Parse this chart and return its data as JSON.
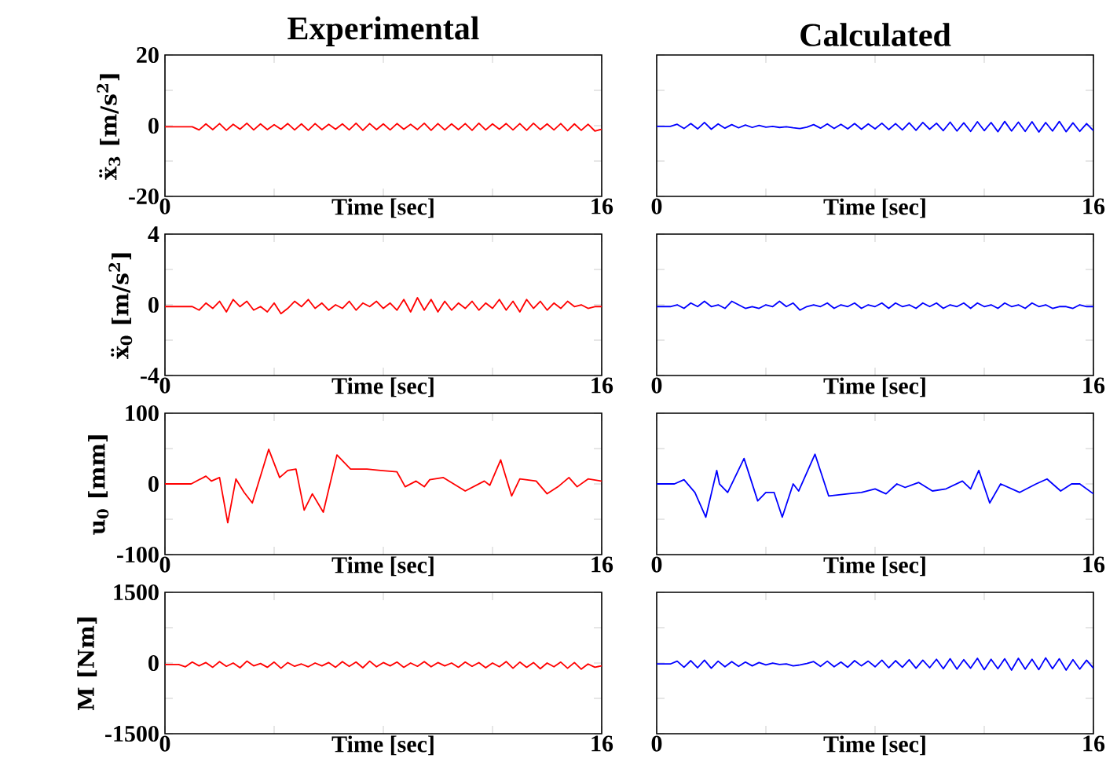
{
  "chart_data": [
    {
      "type": "line",
      "title": "Experimental",
      "xlabel": "Time [sec]",
      "ylabel": "ẍ$_{3}$ [m/s$^{2}$]",
      "xlim": [
        0,
        16
      ],
      "xticks": [
        0,
        {
          "value": 4,
          "label": null
        },
        {
          "value": 8,
          "label": null
        },
        {
          "value": 12,
          "label": null
        },
        16
      ],
      "ylim": [
        -20,
        20
      ],
      "yticks": [
        -20,
        {
          "value": -10,
          "label": null
        },
        0,
        {
          "value": 10,
          "label": null
        },
        20
      ],
      "x": [
        0,
        0.25,
        0.5,
        0.75,
        1,
        1.25,
        1.5,
        1.75,
        2,
        2.25,
        2.5,
        2.75,
        3,
        3.25,
        3.5,
        3.75,
        4,
        4.25,
        4.5,
        4.75,
        5,
        5.25,
        5.5,
        5.75,
        6,
        6.25,
        6.5,
        6.75,
        7,
        7.25,
        7.5,
        7.75,
        8,
        8.25,
        8.5,
        8.75,
        9,
        9.25,
        9.5,
        9.75,
        10,
        10.25,
        10.5,
        10.75,
        11,
        11.25,
        11.5,
        11.75,
        12,
        12.25,
        12.5,
        12.75,
        13,
        13.25,
        13.5,
        13.75,
        14,
        14.25,
        14.5,
        14.75,
        15,
        15.25,
        15.5,
        15.75,
        16
      ],
      "series": [
        {
          "color": "#ff0000",
          "values": [
            -0.3,
            -0.3,
            -0.3,
            -0.3,
            -0.3,
            -1.2,
            0.5,
            -1.1,
            0.6,
            -1.3,
            0.4,
            -1.0,
            0.7,
            -1.2,
            0.5,
            -1.1,
            0.3,
            -1.0,
            0.6,
            -1.2,
            0.5,
            -1.3,
            0.6,
            -1.1,
            0.4,
            -1.0,
            0.5,
            -1.2,
            0.7,
            -1.3,
            0.6,
            -1.1,
            0.5,
            -1.2,
            0.6,
            -1.0,
            0.4,
            -1.1,
            0.7,
            -1.3,
            0.6,
            -1.2,
            0.5,
            -1.1,
            0.6,
            -1.3,
            0.7,
            -1.2,
            0.5,
            -1.0,
            0.6,
            -1.2,
            0.6,
            -1.3,
            0.7,
            -1.1,
            0.5,
            -1.2,
            0.6,
            -1.4,
            0.5,
            -1.3,
            0.4,
            -1.5,
            -1.0
          ]
        }
      ]
    },
    {
      "type": "line",
      "title": "Calculated",
      "xlabel": "Time [sec]",
      "xlim": [
        0,
        16
      ],
      "xticks": [
        0,
        {
          "value": 4,
          "label": null
        },
        {
          "value": 8,
          "label": null
        },
        {
          "value": 12,
          "label": null
        },
        16
      ],
      "ylim": [
        -20,
        20
      ],
      "yticks": [
        -20,
        {
          "value": -10,
          "label": null
        },
        0,
        {
          "value": 10,
          "label": null
        },
        20
      ],
      "tick_labels": "x",
      "x": [
        0,
        0.25,
        0.5,
        0.75,
        1,
        1.25,
        1.5,
        1.75,
        2,
        2.25,
        2.5,
        2.75,
        3,
        3.25,
        3.5,
        3.75,
        4,
        4.25,
        4.5,
        4.75,
        5,
        5.25,
        5.5,
        5.75,
        6,
        6.25,
        6.5,
        6.75,
        7,
        7.25,
        7.5,
        7.75,
        8,
        8.25,
        8.5,
        8.75,
        9,
        9.25,
        9.5,
        9.75,
        10,
        10.25,
        10.5,
        10.75,
        11,
        11.25,
        11.5,
        11.75,
        12,
        12.25,
        12.5,
        12.75,
        13,
        13.25,
        13.5,
        13.75,
        14,
        14.25,
        14.5,
        14.75,
        15,
        15.25,
        15.5,
        15.75,
        16
      ],
      "series": [
        {
          "color": "#0000ff",
          "values": [
            -0.2,
            -0.2,
            -0.2,
            0.4,
            -0.8,
            0.6,
            -0.9,
            0.9,
            -1.0,
            0.5,
            -0.7,
            0.3,
            -0.6,
            0.2,
            -0.5,
            0.1,
            -0.4,
            -0.2,
            -0.5,
            -0.3,
            -0.6,
            -0.8,
            -0.4,
            0.3,
            -0.7,
            0.5,
            -0.8,
            0.4,
            -0.9,
            0.6,
            -1.0,
            0.5,
            -0.9,
            0.7,
            -1.1,
            0.6,
            -1.2,
            0.8,
            -1.3,
            0.9,
            -1.0,
            0.7,
            -1.4,
            1.0,
            -1.5,
            0.8,
            -1.6,
            1.1,
            -1.4,
            0.9,
            -1.7,
            1.2,
            -1.5,
            1.0,
            -1.6,
            1.1,
            -1.8,
            0.9,
            -1.5,
            1.2,
            -1.7,
            0.8,
            -1.6,
            0.6,
            -1.4
          ]
        }
      ]
    },
    {
      "type": "line",
      "xlabel": "Time [sec]",
      "ylabel": "ẍ$_{0}$ [m/s$^{2}$]",
      "xlim": [
        0,
        16
      ],
      "xticks": [
        0,
        {
          "value": 4,
          "label": null
        },
        {
          "value": 8,
          "label": null
        },
        {
          "value": 12,
          "label": null
        },
        16
      ],
      "ylim": [
        -4,
        4
      ],
      "yticks": [
        -4,
        {
          "value": -2,
          "label": null
        },
        0,
        {
          "value": 2,
          "label": null
        },
        4
      ],
      "x": [
        0,
        0.25,
        0.5,
        0.75,
        1,
        1.25,
        1.5,
        1.75,
        2,
        2.25,
        2.5,
        2.75,
        3,
        3.25,
        3.5,
        3.75,
        4,
        4.25,
        4.5,
        4.75,
        5,
        5.25,
        5.5,
        5.75,
        6,
        6.25,
        6.5,
        6.75,
        7,
        7.25,
        7.5,
        7.75,
        8,
        8.25,
        8.5,
        8.75,
        9,
        9.25,
        9.5,
        9.75,
        10,
        10.25,
        10.5,
        10.75,
        11,
        11.25,
        11.5,
        11.75,
        12,
        12.25,
        12.5,
        12.75,
        13,
        13.25,
        13.5,
        13.75,
        14,
        14.25,
        14.5,
        14.75,
        15,
        15.25,
        15.5,
        15.75,
        16
      ],
      "series": [
        {
          "color": "#ff0000",
          "values": [
            -0.1,
            -0.1,
            -0.1,
            -0.1,
            -0.1,
            -0.3,
            0.1,
            -0.2,
            0.2,
            -0.4,
            0.3,
            -0.1,
            0.2,
            -0.3,
            -0.1,
            -0.4,
            0.1,
            -0.5,
            -0.2,
            0.2,
            -0.1,
            0.3,
            -0.2,
            0.1,
            -0.3,
            0.0,
            -0.2,
            0.2,
            -0.3,
            0.1,
            -0.1,
            0.2,
            -0.2,
            0.1,
            -0.3,
            0.3,
            -0.4,
            0.4,
            -0.3,
            0.3,
            -0.4,
            0.2,
            -0.3,
            0.1,
            -0.2,
            0.2,
            -0.3,
            0.1,
            -0.2,
            0.3,
            -0.3,
            0.2,
            -0.4,
            0.3,
            -0.2,
            0.2,
            -0.3,
            0.1,
            -0.2,
            0.2,
            -0.1,
            0.0,
            -0.2,
            -0.1,
            -0.1
          ]
        }
      ]
    },
    {
      "type": "line",
      "xlabel": "Time [sec]",
      "xlim": [
        0,
        16
      ],
      "xticks": [
        0,
        {
          "value": 4,
          "label": null
        },
        {
          "value": 8,
          "label": null
        },
        {
          "value": 12,
          "label": null
        },
        16
      ],
      "ylim": [
        -4,
        4
      ],
      "yticks": [
        -4,
        {
          "value": -2,
          "label": null
        },
        0,
        {
          "value": 2,
          "label": null
        },
        4
      ],
      "tick_labels": "x",
      "x": [
        0,
        0.25,
        0.5,
        0.75,
        1,
        1.25,
        1.5,
        1.75,
        2,
        2.25,
        2.5,
        2.75,
        3,
        3.25,
        3.5,
        3.75,
        4,
        4.25,
        4.5,
        4.75,
        5,
        5.25,
        5.5,
        5.75,
        6,
        6.25,
        6.5,
        6.75,
        7,
        7.25,
        7.5,
        7.75,
        8,
        8.25,
        8.5,
        8.75,
        9,
        9.25,
        9.5,
        9.75,
        10,
        10.25,
        10.5,
        10.75,
        11,
        11.25,
        11.5,
        11.75,
        12,
        12.25,
        12.5,
        12.75,
        13,
        13.25,
        13.5,
        13.75,
        14,
        14.25,
        14.5,
        14.75,
        15,
        15.25,
        15.5,
        15.75,
        16
      ],
      "series": [
        {
          "color": "#0000ff",
          "values": [
            -0.1,
            -0.1,
            -0.1,
            0.0,
            -0.2,
            0.1,
            -0.1,
            0.2,
            -0.1,
            0.0,
            -0.2,
            0.2,
            0.0,
            -0.2,
            -0.1,
            -0.2,
            0.0,
            -0.1,
            0.2,
            -0.1,
            0.1,
            -0.3,
            -0.1,
            0.0,
            -0.1,
            0.1,
            -0.2,
            0.0,
            -0.1,
            0.1,
            -0.2,
            0.0,
            -0.1,
            0.1,
            -0.2,
            0.1,
            -0.1,
            0.0,
            -0.2,
            0.1,
            -0.1,
            0.1,
            -0.2,
            0.0,
            -0.1,
            0.1,
            -0.2,
            0.1,
            -0.1,
            0.0,
            -0.2,
            0.1,
            -0.1,
            0.0,
            -0.2,
            0.1,
            -0.1,
            0.0,
            -0.2,
            -0.1,
            -0.1,
            -0.2,
            0.0,
            -0.1,
            -0.1
          ]
        }
      ]
    },
    {
      "type": "line",
      "xlabel": "Time [sec]",
      "ylabel": "u$_{0}$ [mm]",
      "xlim": [
        0,
        16
      ],
      "xticks": [
        0,
        {
          "value": 4,
          "label": null
        },
        {
          "value": 8,
          "label": null
        },
        {
          "value": 12,
          "label": null
        },
        16
      ],
      "ylim": [
        -100,
        100
      ],
      "yticks": [
        -100,
        {
          "value": -50,
          "label": null
        },
        0,
        {
          "value": 50,
          "label": null
        },
        100
      ],
      "series": [
        {
          "color": "#ff0000",
          "x": [
            0,
            0.96,
            1.5,
            1.7,
            2.0,
            2.3,
            2.6,
            2.9,
            3.2,
            3.8,
            4.2,
            4.5,
            4.8,
            5.1,
            5.4,
            5.8,
            6.3,
            6.8,
            7.4,
            7.9,
            8.5,
            8.8,
            9.2,
            9.5,
            9.7,
            10.2,
            11.0,
            11.7,
            11.9,
            12.3,
            12.7,
            13.0,
            13.6,
            14.0,
            14.4,
            14.8,
            15.1,
            15.5,
            16
          ],
          "values": [
            0,
            0,
            11,
            4,
            9,
            -55,
            7,
            -12,
            -27,
            49,
            9,
            19,
            21,
            -37,
            -14,
            -40,
            41,
            21,
            21,
            19,
            17,
            -4,
            4,
            -4,
            6,
            9,
            -10,
            4,
            -2,
            34,
            -17,
            7,
            4,
            -14,
            -4,
            9,
            -4,
            7,
            4
          ]
        }
      ]
    },
    {
      "type": "line",
      "xlabel": "Time [sec]",
      "xlim": [
        0,
        16
      ],
      "xticks": [
        0,
        {
          "value": 4,
          "label": null
        },
        {
          "value": 8,
          "label": null
        },
        {
          "value": 12,
          "label": null
        },
        16
      ],
      "ylim": [
        -100,
        100
      ],
      "yticks": [
        -100,
        {
          "value": -50,
          "label": null
        },
        0,
        {
          "value": 50,
          "label": null
        },
        100
      ],
      "tick_labels": "x",
      "series": [
        {
          "color": "#0000ff",
          "x": [
            0,
            0.65,
            1.0,
            1.4,
            1.8,
            2.2,
            2.3,
            2.6,
            3.2,
            3.7,
            4.0,
            4.3,
            4.6,
            5.0,
            5.2,
            5.8,
            6.3,
            7.0,
            7.5,
            8.0,
            8.4,
            8.8,
            9.1,
            9.6,
            10.1,
            10.6,
            11.2,
            11.5,
            11.8,
            12.2,
            12.6,
            13.3,
            13.9,
            14.3,
            14.8,
            15.2,
            15.5,
            16
          ],
          "values": [
            0,
            0,
            6,
            -12,
            -47,
            19,
            0,
            -12,
            36,
            -24,
            -12,
            -12,
            -47,
            0,
            -10,
            42,
            -17,
            -14,
            -12,
            -7,
            -14,
            0,
            -5,
            2,
            -10,
            -7,
            4,
            -7,
            19,
            -27,
            0,
            -12,
            0,
            7,
            -10,
            0,
            0,
            -14
          ]
        }
      ]
    },
    {
      "type": "line",
      "xlabel": "Time [sec]",
      "ylabel": "M [Nm]",
      "xlim": [
        0,
        16
      ],
      "xticks": [
        0,
        {
          "value": 4,
          "label": null
        },
        {
          "value": 8,
          "label": null
        },
        {
          "value": 12,
          "label": null
        },
        16
      ],
      "ylim": [
        -1500,
        1500
      ],
      "yticks": [
        -1500,
        {
          "value": -750,
          "label": null
        },
        0,
        {
          "value": 750,
          "label": null
        },
        1500
      ],
      "x": [
        0,
        0.25,
        0.5,
        0.75,
        1,
        1.25,
        1.5,
        1.75,
        2,
        2.25,
        2.5,
        2.75,
        3,
        3.25,
        3.5,
        3.75,
        4,
        4.25,
        4.5,
        4.75,
        5,
        5.25,
        5.5,
        5.75,
        6,
        6.25,
        6.5,
        6.75,
        7,
        7.25,
        7.5,
        7.75,
        8,
        8.25,
        8.5,
        8.75,
        9,
        9.25,
        9.5,
        9.75,
        10,
        10.25,
        10.5,
        10.75,
        11,
        11.25,
        11.5,
        11.75,
        12,
        12.25,
        12.5,
        12.75,
        13,
        13.25,
        13.5,
        13.75,
        14,
        14.25,
        14.5,
        14.75,
        15,
        15.25,
        15.5,
        15.75,
        16
      ],
      "series": [
        {
          "color": "#ff0000",
          "values": [
            -30,
            -30,
            -30,
            -80,
            20,
            -60,
            10,
            -90,
            30,
            -70,
            0,
            -100,
            40,
            -60,
            -10,
            -90,
            20,
            -110,
            10,
            -70,
            -20,
            -80,
            0,
            -60,
            10,
            -90,
            30,
            -70,
            20,
            -100,
            40,
            -80,
            10,
            -60,
            20,
            -90,
            0,
            -70,
            30,
            -80,
            10,
            -60,
            0,
            -90,
            20,
            -70,
            10,
            -100,
            0,
            -80,
            30,
            -110,
            20,
            -90,
            10,
            -120,
            0,
            -80,
            20,
            -110,
            10,
            -130,
            -20,
            -90,
            -60
          ]
        }
      ]
    },
    {
      "type": "line",
      "xlabel": "Time [sec]",
      "xlim": [
        0,
        16
      ],
      "xticks": [
        0,
        {
          "value": 4,
          "label": null
        },
        {
          "value": 8,
          "label": null
        },
        {
          "value": 12,
          "label": null
        },
        16
      ],
      "ylim": [
        -1500,
        1500
      ],
      "yticks": [
        -1500,
        {
          "value": -750,
          "label": null
        },
        0,
        {
          "value": 750,
          "label": null
        },
        1500
      ],
      "tick_labels": "x",
      "x": [
        0,
        0.25,
        0.5,
        0.75,
        1,
        1.25,
        1.5,
        1.75,
        2,
        2.25,
        2.5,
        2.75,
        3,
        3.25,
        3.5,
        3.75,
        4,
        4.25,
        4.5,
        4.75,
        5,
        5.25,
        5.5,
        5.75,
        6,
        6.25,
        6.5,
        6.75,
        7,
        7.25,
        7.5,
        7.75,
        8,
        8.25,
        8.5,
        8.75,
        9,
        9.25,
        9.5,
        9.75,
        10,
        10.25,
        10.5,
        10.75,
        11,
        11.25,
        11.5,
        11.75,
        12,
        12.25,
        12.5,
        12.75,
        13,
        13.25,
        13.5,
        13.75,
        14,
        14.25,
        14.5,
        14.75,
        15,
        15.25,
        15.5,
        15.75,
        16
      ],
      "series": [
        {
          "color": "#0000ff",
          "values": [
            -20,
            -20,
            -20,
            40,
            -90,
            50,
            -100,
            60,
            -110,
            40,
            -80,
            30,
            -70,
            20,
            -60,
            10,
            -40,
            0,
            -30,
            -20,
            -60,
            -40,
            -10,
            30,
            -70,
            40,
            -80,
            20,
            -90,
            50,
            -60,
            40,
            -80,
            60,
            -100,
            50,
            -90,
            70,
            -110,
            60,
            -100,
            80,
            -120,
            90,
            -130,
            70,
            -110,
            100,
            -140,
            80,
            -120,
            90,
            -150,
            100,
            -130,
            80,
            -140,
            110,
            -120,
            90,
            -150,
            70,
            -130,
            60,
            -110
          ]
        }
      ]
    }
  ]
}
